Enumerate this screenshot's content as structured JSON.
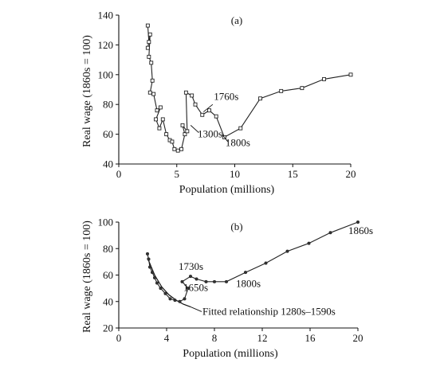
{
  "chart_data": [
    {
      "type": "line",
      "panel_label": "(a)",
      "xlabel": "Population (millions)",
      "ylabel": "Real wage (1860s = 100)",
      "xlim": [
        0,
        20
      ],
      "ylim": [
        40,
        140
      ],
      "xticks": [
        0,
        5,
        10,
        15,
        20
      ],
      "yticks": [
        40,
        60,
        80,
        100,
        120,
        140
      ],
      "grid": false,
      "points": [
        [
          2.5,
          133
        ],
        [
          2.6,
          122
        ],
        [
          2.5,
          118
        ],
        [
          2.7,
          127
        ],
        [
          2.6,
          112
        ],
        [
          2.8,
          108
        ],
        [
          2.9,
          96
        ],
        [
          2.7,
          88
        ],
        [
          3.0,
          87
        ],
        [
          3.3,
          76
        ],
        [
          3.6,
          78
        ],
        [
          3.2,
          70
        ],
        [
          3.5,
          64
        ],
        [
          3.8,
          70
        ],
        [
          4.1,
          60
        ],
        [
          4.4,
          56
        ],
        [
          4.6,
          55
        ],
        [
          4.8,
          50
        ],
        [
          5.1,
          49
        ],
        [
          5.4,
          50
        ],
        [
          5.7,
          60
        ],
        [
          5.5,
          66
        ],
        [
          5.9,
          62
        ],
        [
          5.8,
          88
        ],
        [
          6.3,
          86
        ],
        [
          6.6,
          80
        ],
        [
          7.2,
          73
        ],
        [
          7.8,
          76
        ],
        [
          8.4,
          72
        ],
        [
          9.1,
          58
        ],
        [
          10.5,
          64
        ],
        [
          12.2,
          84
        ],
        [
          14.0,
          89
        ],
        [
          15.8,
          91
        ],
        [
          17.7,
          97
        ],
        [
          20.0,
          100
        ]
      ],
      "annotations": [
        {
          "text": "1760s",
          "x": 8.2,
          "y": 83
        },
        {
          "text": "1300s",
          "x": 6.8,
          "y": 58
        },
        {
          "text": "1800s",
          "x": 9.2,
          "y": 52
        }
      ]
    },
    {
      "type": "line",
      "panel_label": "(b)",
      "xlabel": "Population (millions)",
      "ylabel": "Real wage (1860s = 100)",
      "xlim": [
        0,
        20
      ],
      "ylim": [
        20,
        100
      ],
      "xticks": [
        0,
        4,
        8,
        12,
        16,
        20
      ],
      "yticks": [
        20,
        40,
        60,
        80,
        100
      ],
      "grid": false,
      "points": [
        [
          2.4,
          76
        ],
        [
          2.5,
          72
        ],
        [
          2.6,
          66
        ],
        [
          2.8,
          62
        ],
        [
          3.0,
          58
        ],
        [
          3.2,
          54
        ],
        [
          3.5,
          50
        ],
        [
          3.9,
          46
        ],
        [
          4.3,
          42
        ],
        [
          4.7,
          41
        ],
        [
          5.1,
          40
        ],
        [
          5.5,
          42
        ],
        [
          5.8,
          50
        ],
        [
          5.3,
          55
        ],
        [
          6.0,
          59
        ],
        [
          6.5,
          57
        ],
        [
          7.3,
          55
        ],
        [
          8.0,
          55
        ],
        [
          9.0,
          55
        ],
        [
          10.6,
          62
        ],
        [
          12.3,
          69
        ],
        [
          14.1,
          78
        ],
        [
          15.9,
          84
        ],
        [
          17.7,
          92
        ],
        [
          20.0,
          100
        ]
      ],
      "fitted": {
        "label": "Fitted relationship 1280s–1590s",
        "points": [
          [
            2.4,
            73
          ],
          [
            3.0,
            60
          ],
          [
            3.6,
            51
          ],
          [
            4.2,
            45
          ],
          [
            4.8,
            41
          ],
          [
            5.4,
            38
          ],
          [
            6.0,
            36
          ]
        ]
      },
      "annotations": [
        {
          "text": "1730s",
          "x": 5.0,
          "y": 64
        },
        {
          "text": "1650s",
          "x": 5.4,
          "y": 48
        },
        {
          "text": "1800s",
          "x": 9.8,
          "y": 51
        },
        {
          "text": "1860s",
          "x": 19.2,
          "y": 91
        }
      ]
    }
  ]
}
